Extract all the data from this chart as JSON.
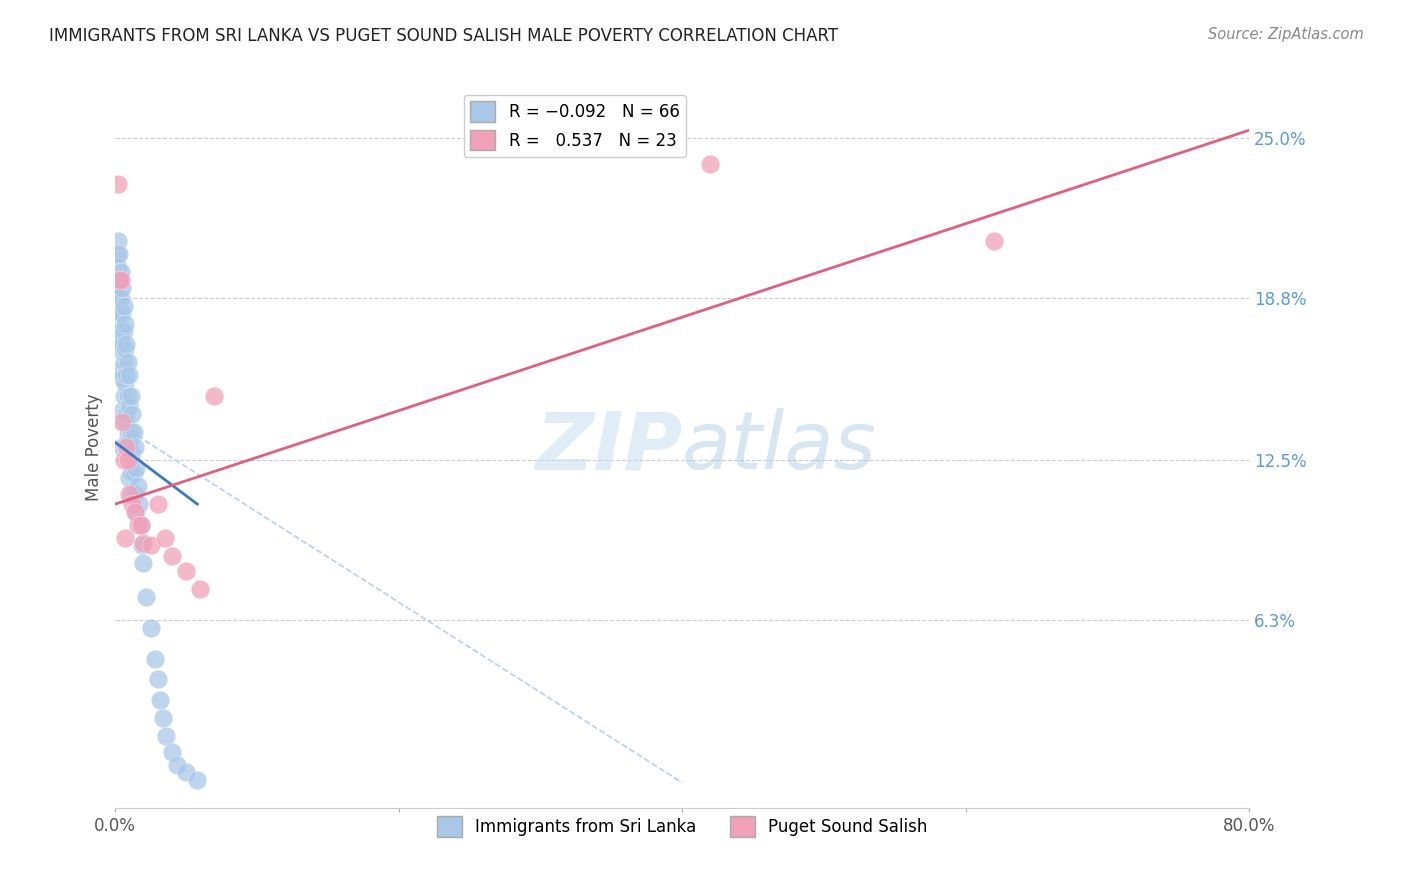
{
  "title": "IMMIGRANTS FROM SRI LANKA VS PUGET SOUND SALISH MALE POVERTY CORRELATION CHART",
  "source": "Source: ZipAtlas.com",
  "ylabel": "Male Poverty",
  "yticks": [
    "25.0%",
    "18.8%",
    "12.5%",
    "6.3%"
  ],
  "ytick_vals": [
    0.25,
    0.188,
    0.125,
    0.063
  ],
  "xlim": [
    0.0,
    0.8
  ],
  "ylim": [
    -0.01,
    0.27
  ],
  "watermark_zip": "ZIP",
  "watermark_atlas": "atlas",
  "blue_color": "#a8c8e8",
  "pink_color": "#f0a0b8",
  "blue_line_color": "#3a78c9",
  "pink_line_color": "#e06080",
  "dashed_line_color": "#b8d0e8",
  "blue_scatter_x": [
    0.001,
    0.001,
    0.002,
    0.002,
    0.002,
    0.002,
    0.003,
    0.003,
    0.003,
    0.003,
    0.004,
    0.004,
    0.004,
    0.004,
    0.005,
    0.005,
    0.005,
    0.005,
    0.005,
    0.005,
    0.006,
    0.006,
    0.006,
    0.006,
    0.007,
    0.007,
    0.007,
    0.007,
    0.008,
    0.008,
    0.008,
    0.009,
    0.009,
    0.009,
    0.01,
    0.01,
    0.01,
    0.01,
    0.011,
    0.011,
    0.011,
    0.012,
    0.012,
    0.012,
    0.013,
    0.013,
    0.014,
    0.014,
    0.015,
    0.015,
    0.016,
    0.017,
    0.018,
    0.019,
    0.02,
    0.022,
    0.025,
    0.028,
    0.03,
    0.032,
    0.034,
    0.036,
    0.04,
    0.044,
    0.05,
    0.058
  ],
  "blue_scatter_y": [
    0.205,
    0.195,
    0.21,
    0.2,
    0.188,
    0.175,
    0.205,
    0.195,
    0.182,
    0.168,
    0.198,
    0.188,
    0.175,
    0.16,
    0.192,
    0.182,
    0.17,
    0.157,
    0.144,
    0.13,
    0.185,
    0.175,
    0.163,
    0.15,
    0.178,
    0.168,
    0.155,
    0.14,
    0.17,
    0.158,
    0.143,
    0.163,
    0.15,
    0.135,
    0.158,
    0.146,
    0.132,
    0.118,
    0.15,
    0.136,
    0.12,
    0.143,
    0.128,
    0.112,
    0.136,
    0.12,
    0.13,
    0.112,
    0.122,
    0.105,
    0.115,
    0.108,
    0.1,
    0.092,
    0.085,
    0.072,
    0.06,
    0.048,
    0.04,
    0.032,
    0.025,
    0.018,
    0.012,
    0.007,
    0.004,
    0.001
  ],
  "pink_scatter_x": [
    0.002,
    0.003,
    0.004,
    0.005,
    0.006,
    0.007,
    0.008,
    0.009,
    0.01,
    0.012,
    0.014,
    0.016,
    0.018,
    0.02,
    0.025,
    0.03,
    0.035,
    0.04,
    0.05,
    0.06,
    0.07,
    0.42,
    0.62
  ],
  "pink_scatter_y": [
    0.232,
    0.195,
    0.195,
    0.14,
    0.125,
    0.095,
    0.13,
    0.125,
    0.112,
    0.108,
    0.105,
    0.1,
    0.1,
    0.093,
    0.092,
    0.108,
    0.095,
    0.088,
    0.082,
    0.075,
    0.15,
    0.24,
    0.21
  ],
  "blue_trend_x": [
    0.0,
    0.058
  ],
  "blue_trend_y": [
    0.132,
    0.108
  ],
  "pink_trend_x": [
    0.0,
    0.8
  ],
  "pink_trend_y": [
    0.108,
    0.253
  ],
  "dashed_trend_x": [
    0.0,
    0.4
  ],
  "dashed_trend_y": [
    0.14,
    0.0
  ]
}
